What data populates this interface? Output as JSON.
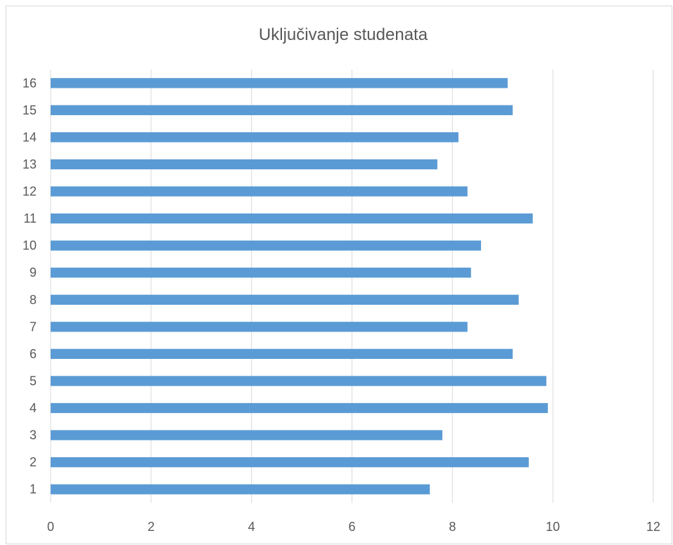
{
  "chart_data": {
    "type": "bar",
    "orientation": "horizontal",
    "title": "Uključivanje studenata",
    "categories": [
      "1",
      "2",
      "3",
      "4",
      "5",
      "6",
      "7",
      "8",
      "9",
      "10",
      "11",
      "12",
      "13",
      "14",
      "15",
      "16"
    ],
    "values": [
      7.55,
      9.52,
      7.8,
      9.9,
      9.87,
      9.2,
      8.3,
      9.32,
      8.37,
      8.57,
      9.6,
      8.3,
      7.7,
      8.12,
      9.2,
      9.1
    ],
    "xlim": [
      0,
      12
    ],
    "xticks": [
      "0",
      "2",
      "4",
      "6",
      "8",
      "10",
      "12"
    ],
    "grid": true,
    "bar_color": "#5b9bd5",
    "grid_color": "#d9d9d9"
  }
}
